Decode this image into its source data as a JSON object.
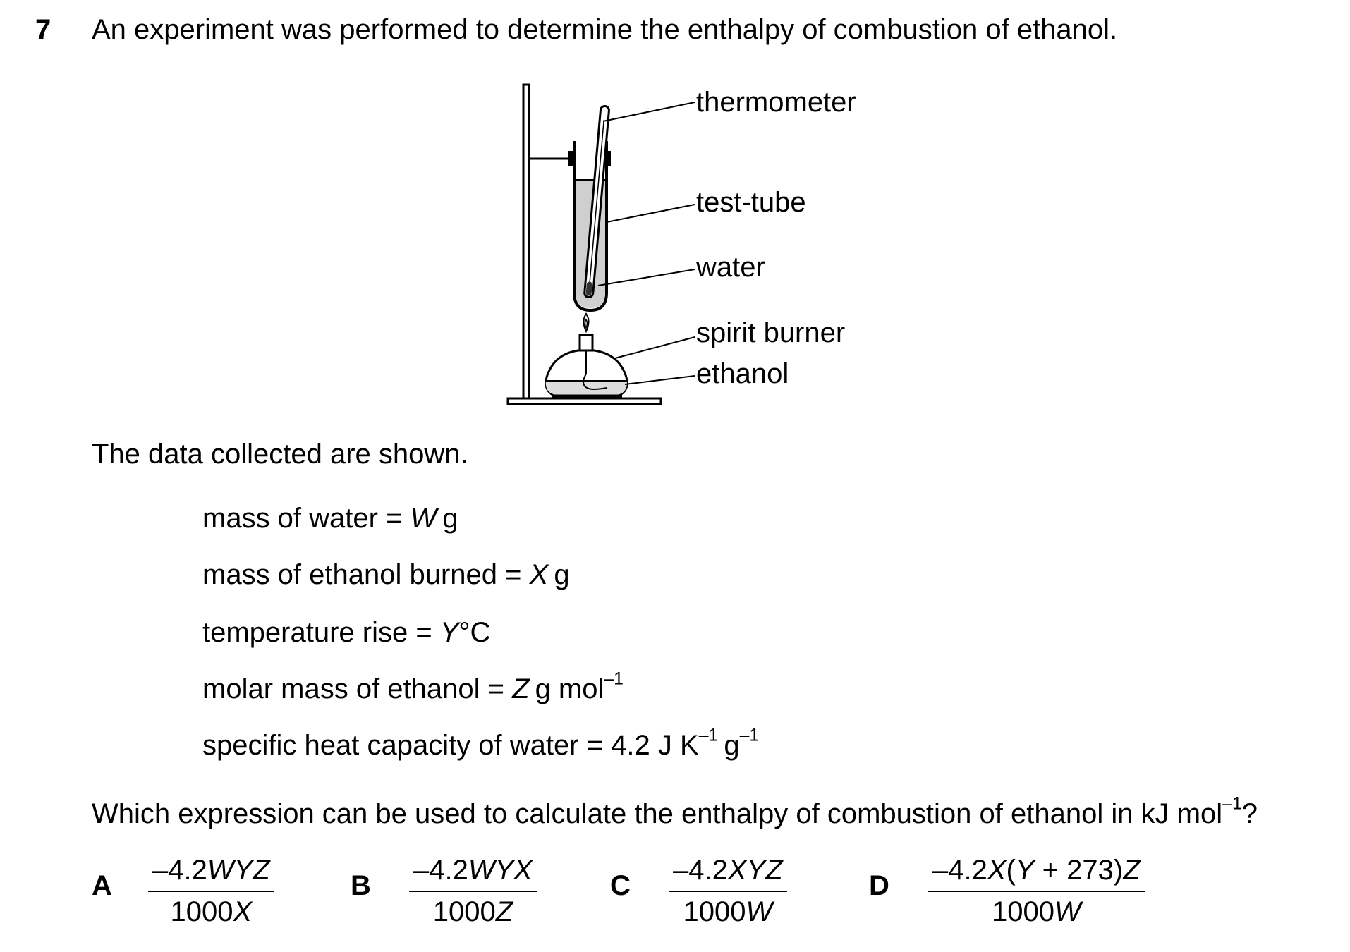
{
  "question": {
    "number": "7",
    "stem": "An experiment was performed to determine the enthalpy of combustion of ethanol.",
    "lead_in": "The data collected are shown.",
    "prompt": "Which expression can be used to calculate the enthalpy of combustion of ethanol in kJ mol",
    "prompt_exp": "–1",
    "prompt_end": "?"
  },
  "diagram": {
    "labels": {
      "thermometer": "thermometer",
      "test_tube": "test-tube",
      "water": "water",
      "spirit_burner": "spirit burner",
      "ethanol": "ethanol"
    }
  },
  "data": {
    "mass_water": {
      "label": "mass of water = ",
      "var": "W",
      "unit": "g"
    },
    "mass_ethanol": {
      "label": "mass of ethanol burned = ",
      "var": "X",
      "unit": "g"
    },
    "temp_rise": {
      "label": "temperature rise = ",
      "var": "Y",
      "unit": "°C"
    },
    "molar_mass": {
      "label": "molar mass of ethanol = ",
      "var": "Z",
      "unit": "g mol",
      "exp": "–1"
    },
    "shc": {
      "label": "specific heat capacity of water = 4.2 J K",
      "exp1": "–1",
      "mid": "g",
      "exp2": "–1"
    }
  },
  "options": {
    "A": {
      "letter": "A",
      "num_pre": "–4.2",
      "num_var": "WYZ",
      "den_pre": "1000",
      "den_var": "X"
    },
    "B": {
      "letter": "B",
      "num_pre": "–4.2",
      "num_var": "WYX",
      "den_pre": "1000",
      "den_var": "Z"
    },
    "C": {
      "letter": "C",
      "num_pre": "–4.2",
      "num_var": "XYZ",
      "den_pre": "1000",
      "den_var": "W"
    },
    "D": {
      "letter": "D",
      "num_pre": "–4.2",
      "num_var1": "X",
      "num_mid1": "(",
      "num_var2": "Y",
      "num_mid2": " + 273)",
      "num_var3": "Z",
      "den_pre": "1000",
      "den_var": "W"
    }
  }
}
